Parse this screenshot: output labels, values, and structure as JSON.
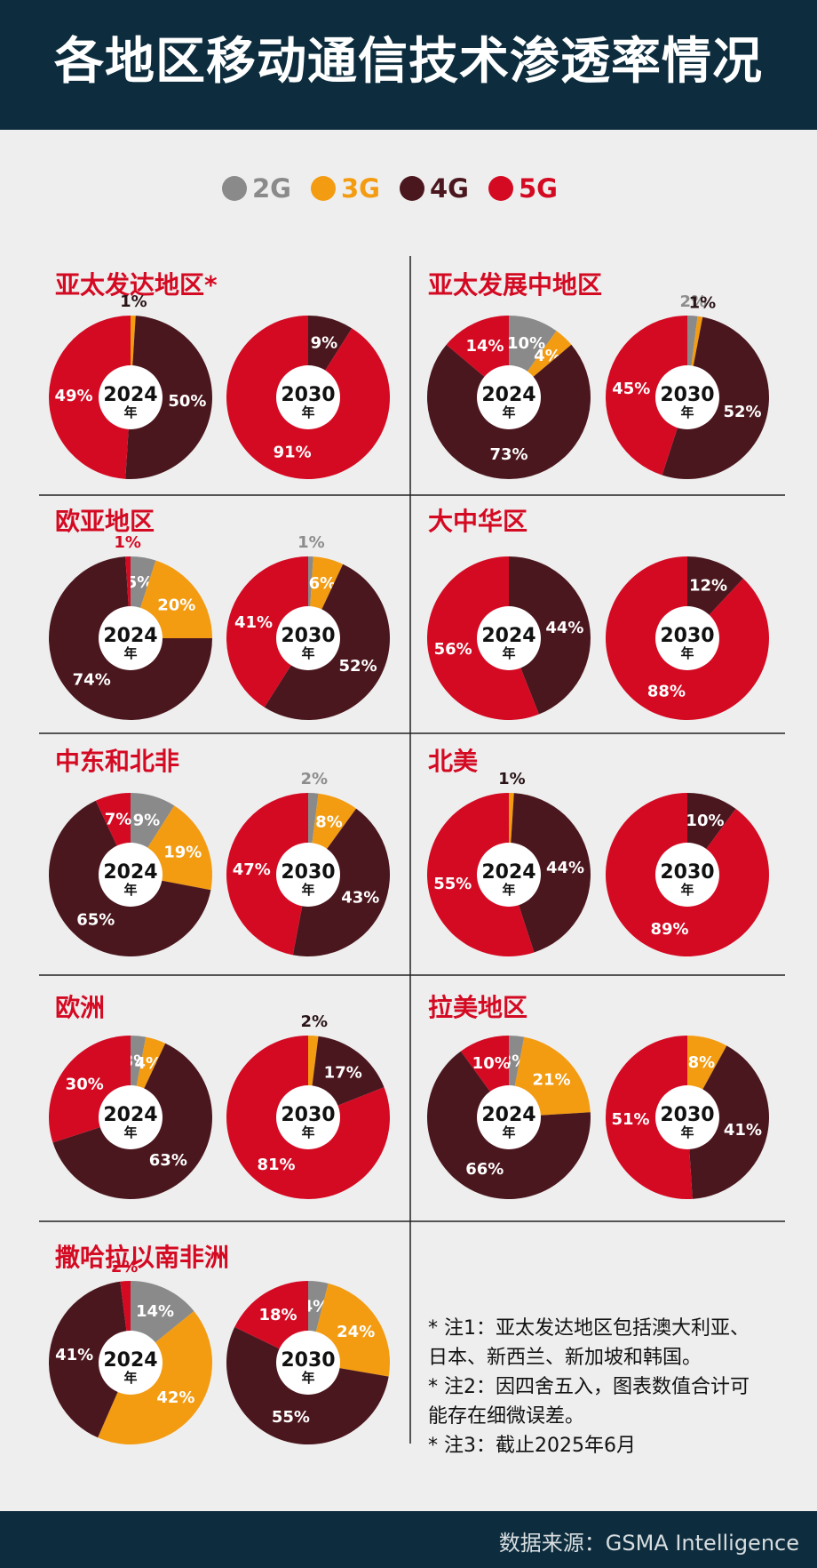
{
  "title": "各地区移动通信技术渗透率情况",
  "legend": [
    {
      "label": "2G",
      "color": "#8a8a8a"
    },
    {
      "label": "3G",
      "color": "#f39c12"
    },
    {
      "label": "4G",
      "color": "#4b171e"
    },
    {
      "label": "5G",
      "color": "#d40a23"
    }
  ],
  "year_suffix": "年",
  "chart_data": [
    {
      "type": "pie",
      "title": "亚太发达地区*",
      "year": "2024",
      "categories": [
        "2G",
        "3G",
        "4G",
        "5G"
      ],
      "values": [
        0,
        1,
        50,
        49
      ],
      "labels": [
        "",
        "1%",
        "50%",
        "49%"
      ]
    },
    {
      "type": "pie",
      "title": "亚太发达地区*",
      "year": "2030",
      "categories": [
        "2G",
        "3G",
        "4G",
        "5G"
      ],
      "values": [
        0,
        0,
        9,
        91
      ],
      "labels": [
        "",
        "",
        "9%",
        "91%"
      ]
    },
    {
      "type": "pie",
      "title": "亚太发展中地区",
      "year": "2024",
      "categories": [
        "2G",
        "3G",
        "4G",
        "5G"
      ],
      "values": [
        10,
        4,
        73,
        14
      ],
      "labels": [
        "10%",
        "4%",
        "73%",
        "14%"
      ]
    },
    {
      "type": "pie",
      "title": "亚太发展中地区",
      "year": "2030",
      "categories": [
        "2G",
        "3G",
        "4G",
        "5G"
      ],
      "values": [
        2,
        1,
        52,
        45
      ],
      "labels": [
        "2%",
        "1%",
        "52%",
        "45%"
      ]
    },
    {
      "type": "pie",
      "title": "欧亚地区",
      "year": "2024",
      "categories": [
        "2G",
        "3G",
        "4G",
        "5G"
      ],
      "values": [
        5,
        20,
        74,
        1
      ],
      "labels": [
        "5%",
        "20%",
        "74%",
        "1%"
      ]
    },
    {
      "type": "pie",
      "title": "欧亚地区",
      "year": "2030",
      "categories": [
        "2G",
        "3G",
        "4G",
        "5G"
      ],
      "values": [
        1,
        6,
        52,
        41
      ],
      "labels": [
        "1%",
        "6%",
        "52%",
        "41%"
      ]
    },
    {
      "type": "pie",
      "title": "大中华区",
      "year": "2024",
      "categories": [
        "2G",
        "3G",
        "4G",
        "5G"
      ],
      "values": [
        0,
        0,
        44,
        56
      ],
      "labels": [
        "",
        "",
        "44%",
        "56%"
      ]
    },
    {
      "type": "pie",
      "title": "大中华区",
      "year": "2030",
      "categories": [
        "2G",
        "3G",
        "4G",
        "5G"
      ],
      "values": [
        0,
        0,
        12,
        88
      ],
      "labels": [
        "",
        "",
        "12%",
        "88%"
      ]
    },
    {
      "type": "pie",
      "title": "中东和北非",
      "year": "2024",
      "categories": [
        "2G",
        "3G",
        "4G",
        "5G"
      ],
      "values": [
        9,
        19,
        65,
        7
      ],
      "labels": [
        "9%",
        "19%",
        "65%",
        "7%"
      ]
    },
    {
      "type": "pie",
      "title": "中东和北非",
      "year": "2030",
      "categories": [
        "2G",
        "3G",
        "4G",
        "5G"
      ],
      "values": [
        2,
        8,
        43,
        47
      ],
      "labels": [
        "2%",
        "8%",
        "43%",
        "47%"
      ]
    },
    {
      "type": "pie",
      "title": "北美",
      "year": "2024",
      "categories": [
        "2G",
        "3G",
        "4G",
        "5G"
      ],
      "values": [
        0,
        1,
        44,
        55
      ],
      "labels": [
        "",
        "1%",
        "44%",
        "55%"
      ]
    },
    {
      "type": "pie",
      "title": "北美",
      "year": "2030",
      "categories": [
        "2G",
        "3G",
        "4G",
        "5G"
      ],
      "values": [
        0,
        0,
        10,
        89
      ],
      "labels": [
        "",
        "",
        "10%",
        "89%"
      ]
    },
    {
      "type": "pie",
      "title": "欧洲",
      "year": "2024",
      "categories": [
        "2G",
        "3G",
        "4G",
        "5G"
      ],
      "values": [
        3,
        4,
        63,
        30
      ],
      "labels": [
        "3%",
        "4%",
        "63%",
        "30%"
      ]
    },
    {
      "type": "pie",
      "title": "欧洲",
      "year": "2030",
      "categories": [
        "2G",
        "3G",
        "4G",
        "5G"
      ],
      "values": [
        0,
        2,
        17,
        81
      ],
      "labels": [
        "",
        "2%",
        "17%",
        "81%"
      ]
    },
    {
      "type": "pie",
      "title": "拉美地区",
      "year": "2024",
      "categories": [
        "2G",
        "3G",
        "4G",
        "5G"
      ],
      "values": [
        3,
        21,
        66,
        10
      ],
      "labels": [
        "3%",
        "21%",
        "66%",
        "10%"
      ]
    },
    {
      "type": "pie",
      "title": "拉美地区",
      "year": "2030",
      "categories": [
        "2G",
        "3G",
        "4G",
        "5G"
      ],
      "values": [
        0,
        8,
        41,
        51
      ],
      "labels": [
        "",
        "8%",
        "41%",
        "51%"
      ]
    },
    {
      "type": "pie",
      "title": "撒哈拉以南非洲",
      "year": "2024",
      "categories": [
        "2G",
        "3G",
        "4G",
        "5G"
      ],
      "values": [
        14,
        42,
        41,
        2
      ],
      "labels": [
        "14%",
        "42%",
        "41%",
        "2%"
      ]
    },
    {
      "type": "pie",
      "title": "撒哈拉以南非洲",
      "year": "2030",
      "categories": [
        "2G",
        "3G",
        "4G",
        "5G"
      ],
      "values": [
        4,
        24,
        55,
        18
      ],
      "labels": [
        "4%",
        "24%",
        "55%",
        "18%"
      ]
    }
  ],
  "notes": [
    "* 注1：亚太发达地区包括澳大利亚、",
    "日本、新西兰、新加坡和韩国。",
    "* 注2：因四舍五入，图表数值合计可",
    "能存在细微误差。",
    "* 注3：截止2025年6月"
  ],
  "source": "数据来源：GSMA Intelligence"
}
